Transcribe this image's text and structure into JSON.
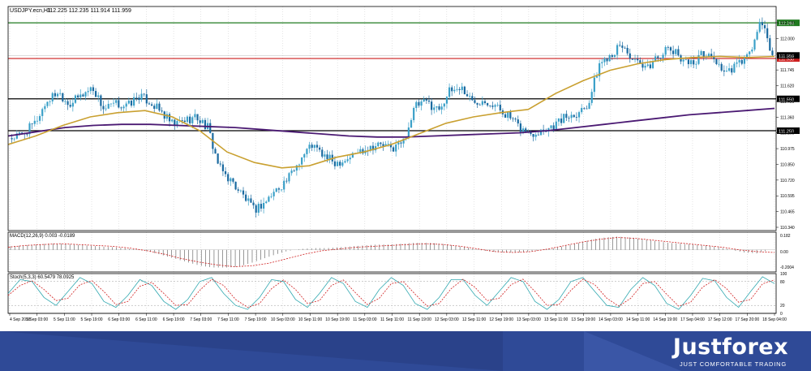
{
  "chart_data": {
    "type": "candlestick",
    "symbol_label": "USDJPY.ecn,H1",
    "ohlc_header": "112.225 112.235 111.914 111.959",
    "y_ticks": [
      "112.130",
      "112.000",
      "111.870",
      "111.745",
      "111.620",
      "111.490",
      "111.360",
      "111.105",
      "110.975",
      "110.850",
      "110.720",
      "110.595",
      "110.465",
      "110.340"
    ],
    "ylim": [
      110.34,
      112.42
    ],
    "horizontal_levels": [
      {
        "label": "112.266",
        "value": 112.266,
        "color": "#1f7a1f"
      },
      {
        "label": "111.930",
        "value": 111.93,
        "color": "#cc1f1f"
      },
      {
        "label": "111.550",
        "value": 111.55,
        "color": "#000000"
      },
      {
        "label": "111.250",
        "value": 111.25,
        "color": "#000000"
      }
    ],
    "current_price_label": "111.959",
    "x_ticks": [
      "4 Sep 2018",
      "5 Sep 03:00",
      "5 Sep 11:00",
      "5 Sep 19:00",
      "6 Sep 03:00",
      "6 Sep 11:00",
      "6 Sep 19:00",
      "7 Sep 03:00",
      "7 Sep 11:00",
      "7 Sep 19:00",
      "10 Sep 03:00",
      "10 Sep 11:00",
      "10 Sep 19:00",
      "11 Sep 03:00",
      "11 Sep 11:00",
      "11 Sep 19:00",
      "12 Sep 03:00",
      "12 Sep 11:00",
      "12 Sep 19:00",
      "13 Sep 03:00",
      "13 Sep 11:00",
      "13 Sep 19:00",
      "14 Sep 03:00",
      "14 Sep 11:00",
      "14 Sep 19:00",
      "17 Sep 04:00",
      "17 Sep 12:00",
      "17 Sep 20:00",
      "18 Sep 04:00"
    ],
    "close_path": [
      111.18,
      111.22,
      111.32,
      111.52,
      111.62,
      111.5,
      111.58,
      111.66,
      111.45,
      111.5,
      111.48,
      111.58,
      111.52,
      111.42,
      111.3,
      111.35,
      111.38,
      111.28,
      110.9,
      110.78,
      110.65,
      110.5,
      110.58,
      110.7,
      110.8,
      110.98,
      111.12,
      111.02,
      110.95,
      110.98,
      111.05,
      111.1,
      111.12,
      111.08,
      111.15,
      111.48,
      111.52,
      111.45,
      111.62,
      111.66,
      111.52,
      111.55,
      111.48,
      111.4,
      111.28,
      111.22,
      111.26,
      111.3,
      111.38,
      111.42,
      111.5,
      111.88,
      111.98,
      112.05,
      111.9,
      111.82,
      111.95,
      112.02,
      111.95,
      111.88,
      111.98,
      111.92,
      111.78,
      111.88,
      111.96,
      112.28,
      111.96
    ],
    "ma_slow_path": [
      111.2,
      111.24,
      111.28,
      111.3,
      111.31,
      111.31,
      111.3,
      111.29,
      111.28,
      111.26,
      111.24,
      111.22,
      111.2,
      111.19,
      111.19,
      111.2,
      111.21,
      111.22,
      111.23,
      111.25,
      111.28,
      111.31,
      111.34,
      111.37,
      111.4,
      111.42,
      111.44,
      111.46
    ],
    "ma_fast_path": [
      111.12,
      111.2,
      111.3,
      111.38,
      111.42,
      111.44,
      111.38,
      111.25,
      111.05,
      110.95,
      110.9,
      110.92,
      111.0,
      111.05,
      111.12,
      111.22,
      111.32,
      111.38,
      111.42,
      111.45,
      111.6,
      111.72,
      111.82,
      111.88,
      111.92,
      111.94,
      111.95,
      111.94,
      111.95
    ],
    "macd": {
      "label": "MACD(12,26,9) 0.003 -0.0189",
      "y_ticks": [
        "0.182",
        "0.00",
        "-0.2004"
      ],
      "ylim": [
        -0.25,
        0.2
      ],
      "histogram": [
        0.04,
        0.05,
        0.06,
        0.07,
        0.07,
        0.06,
        0.05,
        0.04,
        0.03,
        0.02,
        0.0,
        -0.02,
        -0.06,
        -0.1,
        -0.14,
        -0.18,
        -0.2,
        -0.2,
        -0.19,
        -0.15,
        -0.1,
        -0.05,
        -0.01,
        0.01,
        0.02,
        0.02,
        0.03,
        0.04,
        0.05,
        0.06,
        0.06,
        0.07,
        0.08,
        0.08,
        0.07,
        0.05,
        0.03,
        0.0,
        -0.02,
        -0.03,
        -0.03,
        -0.02,
        0.0,
        0.02,
        0.05,
        0.08,
        0.12,
        0.14,
        0.15,
        0.14,
        0.12,
        0.1,
        0.08,
        0.07,
        0.06,
        0.05,
        0.03,
        0.0,
        -0.03,
        -0.04,
        0.0
      ],
      "signal": [
        0.03,
        0.05,
        0.06,
        0.07,
        0.06,
        0.05,
        0.04,
        0.02,
        -0.01,
        -0.05,
        -0.1,
        -0.14,
        -0.17,
        -0.19,
        -0.18,
        -0.15,
        -0.1,
        -0.05,
        -0.01,
        0.01,
        0.03,
        0.04,
        0.05,
        0.06,
        0.07,
        0.06,
        0.04,
        0.01,
        -0.02,
        -0.03,
        -0.02,
        0.01,
        0.05,
        0.09,
        0.12,
        0.14,
        0.13,
        0.11,
        0.09,
        0.07,
        0.05,
        0.03,
        0.0,
        -0.02,
        -0.03
      ]
    },
    "stoch": {
      "label": "Stoch(5,3,3) 60.5479 78.0925",
      "y_ticks": [
        "100",
        "80",
        "20",
        "0"
      ],
      "ylim": [
        0,
        100
      ],
      "main": [
        50,
        85,
        80,
        40,
        20,
        55,
        90,
        75,
        30,
        15,
        45,
        85,
        70,
        30,
        10,
        35,
        80,
        90,
        50,
        20,
        10,
        40,
        85,
        80,
        35,
        15,
        50,
        90,
        75,
        30,
        15,
        60,
        90,
        70,
        25,
        10,
        40,
        85,
        85,
        45,
        20,
        55,
        90,
        80,
        30,
        10,
        35,
        80,
        90,
        55,
        20,
        15,
        60,
        90,
        70,
        25,
        10,
        45,
        88,
        82,
        40,
        15,
        55,
        92,
        75
      ],
      "signal": [
        45,
        70,
        82,
        60,
        32,
        38,
        72,
        82,
        55,
        22,
        30,
        68,
        78,
        50,
        20,
        22,
        58,
        86,
        70,
        35,
        15,
        25,
        62,
        84,
        60,
        25,
        32,
        70,
        84,
        52,
        22,
        38,
        75,
        80,
        48,
        18,
        25,
        62,
        86,
        65,
        32,
        38,
        72,
        86,
        55,
        20,
        22,
        58,
        86,
        72,
        38,
        18,
        38,
        75,
        80,
        48,
        18,
        28,
        66,
        85,
        62,
        28,
        35,
        74,
        84
      ]
    }
  },
  "footer": {
    "brand_name": "Justforex",
    "tagline": "JUST COMFORTABLE TRADING"
  }
}
